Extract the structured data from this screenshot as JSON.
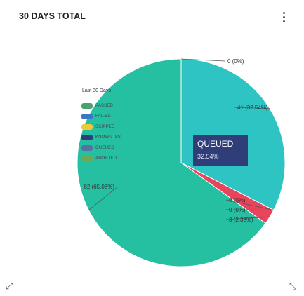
{
  "card": {
    "title": "30 DAYS TOTAL"
  },
  "legend": {
    "title": "Last 30 Days",
    "items": [
      {
        "label": "PASSED",
        "color": "#4aa36e"
      },
      {
        "label": "FAILED",
        "color": "#3a78c2"
      },
      {
        "label": "SKIPPED",
        "color": "#f0c93a"
      },
      {
        "label": "KNOWN ISS",
        "color": "#2f3e78"
      },
      {
        "label": "QUEUED",
        "color": "#5b6ea5"
      },
      {
        "label": "ABORTED",
        "color": "#6aaa55"
      }
    ]
  },
  "tooltip": {
    "label": "QUEUED",
    "value": "32.54%"
  },
  "chart_data": {
    "type": "pie",
    "slices": [
      {
        "name": "Passed",
        "label": "0 (0%)",
        "value": 0,
        "color": "#4aa36e"
      },
      {
        "name": "Queued",
        "label": "41 (32.54%)",
        "value": 41,
        "color": "#2ec4c4"
      },
      {
        "name": "Known issue",
        "label": "0 (0%)",
        "value": 0,
        "color": "#2f3e78"
      },
      {
        "name": "Failed",
        "label": "0 (0%)",
        "value": 0,
        "color": "#3a78c2"
      },
      {
        "name": "Aborted",
        "label": "3 (2.38%)",
        "value": 3,
        "color": "#e8445c"
      },
      {
        "name": "Skipped",
        "label": "82 (65.08%)",
        "value": 82,
        "color": "#25bfa2"
      }
    ],
    "left_label": "82 (65.08%)"
  },
  "controls": {
    "resize_left": "⤢",
    "resize_right": "⤡"
  }
}
